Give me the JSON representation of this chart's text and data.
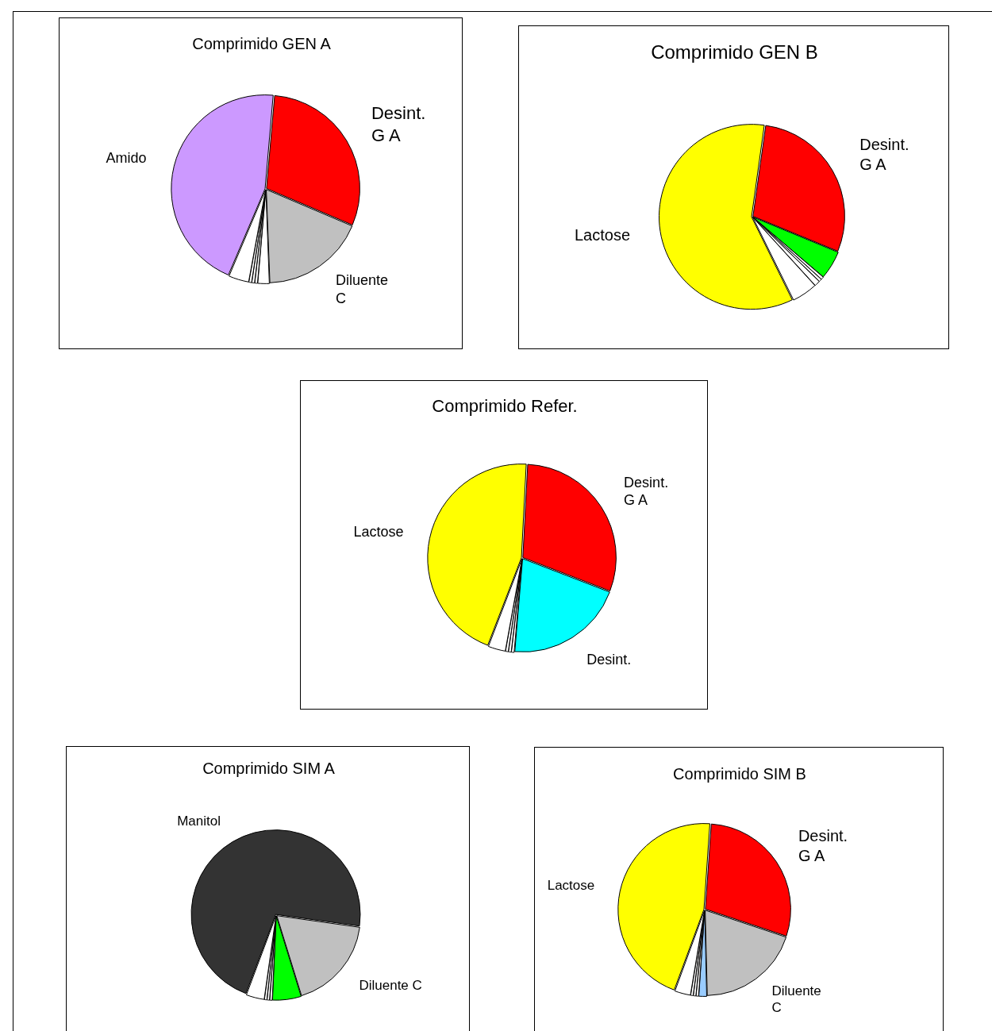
{
  "chart_data": [
    {
      "type": "pie",
      "title": "Comprimido GEN A",
      "categories": [
        "Desint. G A",
        "Diluente C",
        null,
        null,
        null,
        null,
        null,
        "Amido"
      ],
      "values": [
        30,
        18,
        2,
        0.5,
        0.5,
        0.5,
        3.5,
        45
      ],
      "colors": [
        "#ff0000",
        "#c0c0c0",
        "#ffffff",
        "#ffffff",
        "#ffffff",
        "#ffffff",
        "#ffffff",
        "#cc99ff"
      ]
    },
    {
      "type": "pie",
      "title": "Comprimido GEN B",
      "categories": [
        "Desint. G A",
        null,
        null,
        null,
        null,
        null,
        "Lactose"
      ],
      "values": [
        29,
        5,
        0.5,
        0.5,
        1,
        4.5,
        59.5
      ],
      "colors": [
        "#ff0000",
        "#00ff00",
        "#ffffff",
        "#ffffff",
        "#ffffff",
        "#ffffff",
        "#ffff00"
      ]
    },
    {
      "type": "pie",
      "title": "Comprimido Refer.",
      "categories": [
        "Desint. G A",
        "Desint.",
        null,
        null,
        null,
        null,
        "Lactose"
      ],
      "values": [
        30,
        20.5,
        0.5,
        0.5,
        0.5,
        3,
        45
      ],
      "colors": [
        "#ff0000",
        "#00ffff",
        "#ffffff",
        "#ffffff",
        "#ffffff",
        "#ffffff",
        "#ffff00"
      ]
    },
    {
      "type": "pie",
      "title": "Comprimido SIM A",
      "categories": [
        "Diluente C",
        null,
        null,
        null,
        null,
        null,
        "Manitol"
      ],
      "values": [
        18,
        5.5,
        0.5,
        0.5,
        0.5,
        3.5,
        71.5
      ],
      "colors": [
        "#c0c0c0",
        "#00ff00",
        "#ffffff",
        "#ffffff",
        "#ffffff",
        "#ffffff",
        "#333333"
      ]
    },
    {
      "type": "pie",
      "title": "Comprimido SIM B",
      "categories": [
        "Desint. G A",
        "Diluente C",
        null,
        null,
        null,
        null,
        null,
        "Lactose"
      ],
      "values": [
        29,
        19.5,
        1.5,
        0.5,
        0.5,
        0.5,
        3,
        45.5
      ],
      "colors": [
        "#ff0000",
        "#c0c0c0",
        "#99ccff",
        "#ffffff",
        "#ffffff",
        "#ffffff",
        "#ffffff",
        "#ffff00"
      ]
    }
  ]
}
